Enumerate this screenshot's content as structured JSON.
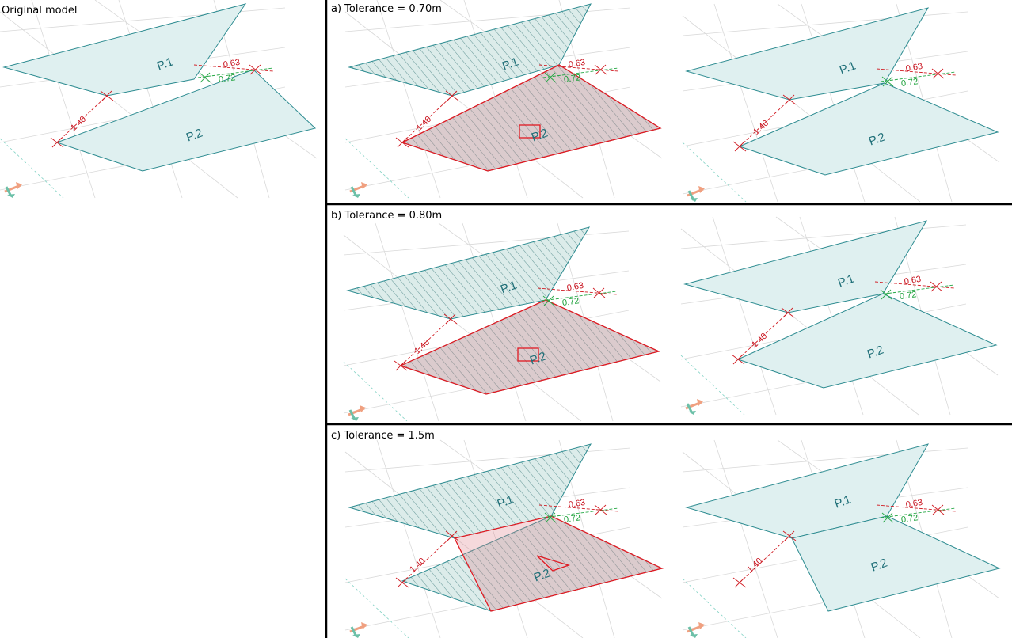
{
  "captions": {
    "original": "Original model",
    "a": "a) Tolerance = 0.70m",
    "b": "b) Tolerance = 0.80m",
    "c": "c) Tolerance = 1.5m"
  },
  "labels": {
    "plate1": "P.1",
    "plate2": "P.2",
    "dim_gap": "1.40",
    "dim_red": "0.63",
    "dim_green": "0.72"
  },
  "colors": {
    "plate_fill": "#dff0f0",
    "plate_edge": "#2e8c91",
    "selection": "#e01a22",
    "dim_red": "#c8101c",
    "dim_green": "#1aa038"
  }
}
